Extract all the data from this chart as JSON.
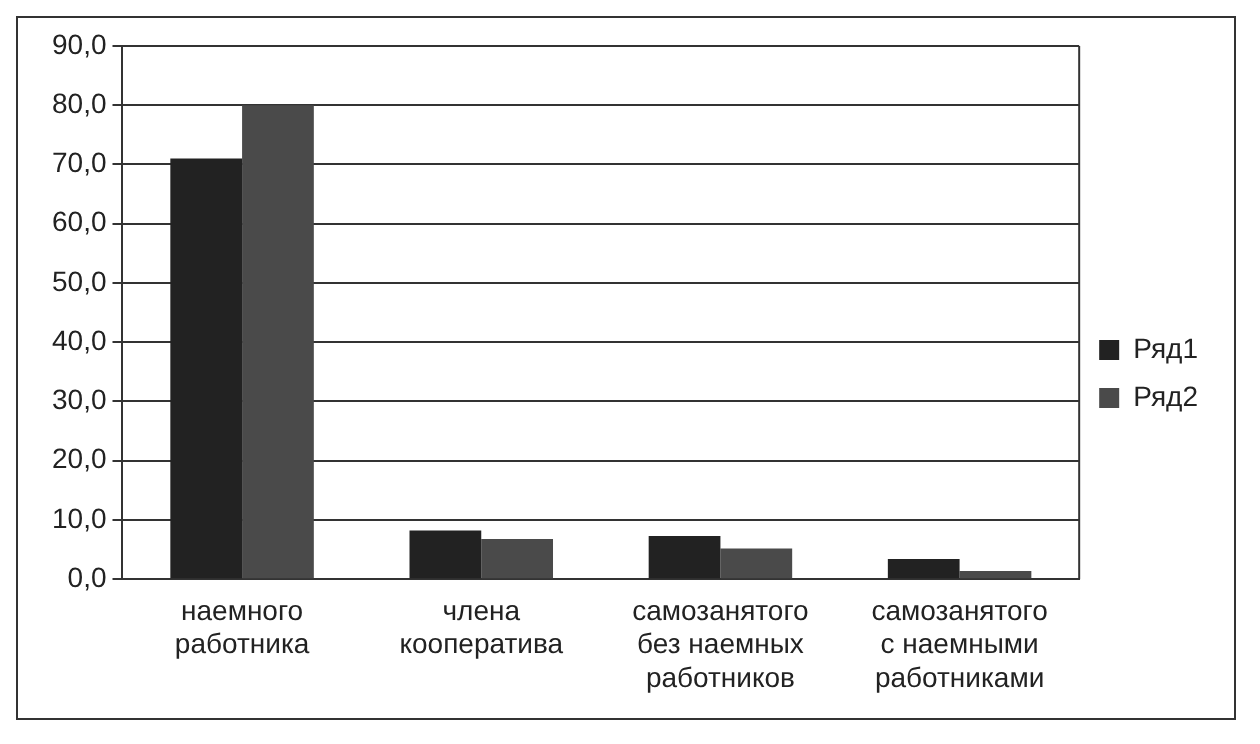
{
  "chart_data": {
    "type": "bar",
    "categories": [
      "наемного работника",
      "члена кооператива",
      "самозанятого без наемных работников",
      "самозанятого с наемными работниками"
    ],
    "series": [
      {
        "name": "Ряд1",
        "color": "#222222",
        "values": [
          71,
          8.2,
          7.3,
          3.4
        ]
      },
      {
        "name": "Ряд2",
        "color": "#4a4a4a",
        "values": [
          80,
          6.8,
          5.2,
          1.4
        ]
      }
    ],
    "ylim": [
      0,
      90
    ],
    "yticks": [
      {
        "value": 0,
        "label": "0,0"
      },
      {
        "value": 10,
        "label": "10,0"
      },
      {
        "value": 20,
        "label": "20,0"
      },
      {
        "value": 30,
        "label": "30,0"
      },
      {
        "value": 40,
        "label": "40,0"
      },
      {
        "value": 50,
        "label": "50,0"
      },
      {
        "value": 60,
        "label": "60,0"
      },
      {
        "value": 70,
        "label": "70,0"
      },
      {
        "value": 80,
        "label": "80,0"
      },
      {
        "value": 90,
        "label": "90,0"
      }
    ],
    "grid": "y",
    "legend": "right"
  }
}
